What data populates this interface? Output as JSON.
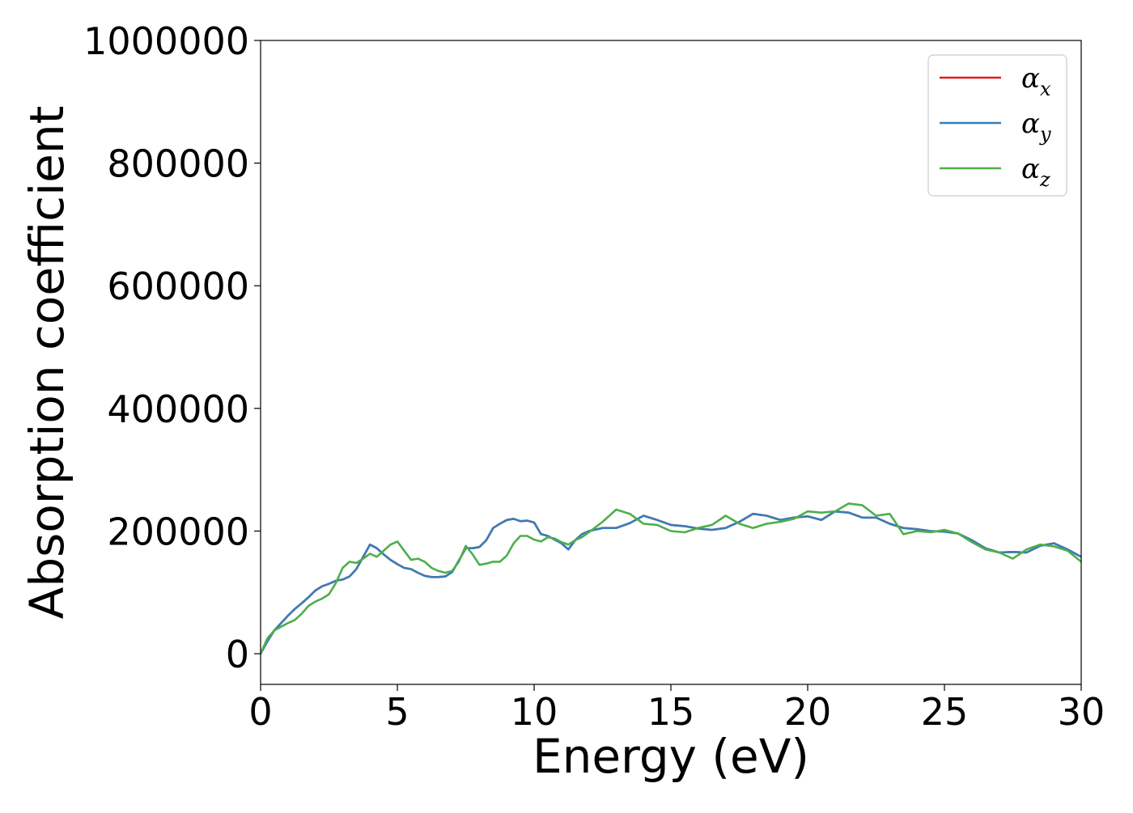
{
  "chart_data": {
    "type": "line",
    "xlabel": "Energy (eV)",
    "ylabel": "Absorption coefficient",
    "xlim": [
      0,
      30
    ],
    "ylim": [
      -50000,
      1000000
    ],
    "xticks": [
      0,
      5,
      10,
      15,
      20,
      25,
      30
    ],
    "yticks": [
      0,
      200000,
      400000,
      600000,
      800000,
      1000000
    ],
    "grid": false,
    "legend_position": "top-right",
    "series": [
      {
        "name": "αx",
        "legend_base": "α",
        "legend_sub": "x",
        "color": "#e41a1c",
        "x": [
          0,
          0.25,
          0.5,
          0.75,
          1,
          1.25,
          1.5,
          1.75,
          2,
          2.25,
          2.5,
          2.75,
          3,
          3.25,
          3.5,
          3.75,
          4,
          4.25,
          4.5,
          4.75,
          5,
          5.25,
          5.5,
          5.75,
          6,
          6.25,
          6.5,
          6.75,
          7,
          7.25,
          7.5,
          7.75,
          8,
          8.25,
          8.5,
          8.75,
          9,
          9.25,
          9.5,
          9.75,
          10,
          10.25,
          10.5,
          10.75,
          11,
          11.25,
          11.5,
          11.75,
          12,
          12.5,
          13,
          13.5,
          14,
          14.5,
          15,
          15.5,
          16,
          16.5,
          17,
          17.5,
          18,
          18.5,
          19,
          19.5,
          20,
          20.5,
          21,
          21.5,
          22,
          22.5,
          23,
          23.5,
          24,
          24.5,
          25,
          25.5,
          26,
          26.5,
          27,
          27.5,
          28,
          28.5,
          29,
          29.5,
          30
        ],
        "y": [
          0,
          20000,
          38000,
          50000,
          62000,
          73000,
          82000,
          92000,
          103000,
          110000,
          114000,
          119000,
          121000,
          126000,
          138000,
          158000,
          178000,
          172000,
          162000,
          153000,
          146000,
          140000,
          138000,
          132000,
          127000,
          125000,
          125000,
          126000,
          133000,
          152000,
          172000,
          172000,
          174000,
          185000,
          205000,
          212000,
          218000,
          220000,
          216000,
          217000,
          214000,
          195000,
          192000,
          186000,
          180000,
          170000,
          185000,
          195000,
          200000,
          205000,
          205000,
          213000,
          225000,
          218000,
          210000,
          208000,
          204000,
          202000,
          205000,
          215000,
          228000,
          225000,
          218000,
          222000,
          224000,
          218000,
          232000,
          230000,
          222000,
          222000,
          212000,
          205000,
          203000,
          200000,
          199000,
          196000,
          185000,
          172000,
          165000,
          166000,
          165000,
          176000,
          180000,
          170000,
          158000
        ]
      },
      {
        "name": "αy",
        "legend_base": "α",
        "legend_sub": "y",
        "color": "#377eb8",
        "x": [
          0,
          0.25,
          0.5,
          0.75,
          1,
          1.25,
          1.5,
          1.75,
          2,
          2.25,
          2.5,
          2.75,
          3,
          3.25,
          3.5,
          3.75,
          4,
          4.25,
          4.5,
          4.75,
          5,
          5.25,
          5.5,
          5.75,
          6,
          6.25,
          6.5,
          6.75,
          7,
          7.25,
          7.5,
          7.75,
          8,
          8.25,
          8.5,
          8.75,
          9,
          9.25,
          9.5,
          9.75,
          10,
          10.25,
          10.5,
          10.75,
          11,
          11.25,
          11.5,
          11.75,
          12,
          12.5,
          13,
          13.5,
          14,
          14.5,
          15,
          15.5,
          16,
          16.5,
          17,
          17.5,
          18,
          18.5,
          19,
          19.5,
          20,
          20.5,
          21,
          21.5,
          22,
          22.5,
          23,
          23.5,
          24,
          24.5,
          25,
          25.5,
          26,
          26.5,
          27,
          27.5,
          28,
          28.5,
          29,
          29.5,
          30
        ],
        "y": [
          0,
          20000,
          38000,
          50000,
          62000,
          73000,
          82000,
          92000,
          103000,
          110000,
          114000,
          119000,
          121000,
          126000,
          138000,
          158000,
          178000,
          172000,
          162000,
          153000,
          146000,
          140000,
          138000,
          132000,
          127000,
          125000,
          125000,
          126000,
          133000,
          152000,
          172000,
          172000,
          174000,
          185000,
          205000,
          212000,
          218000,
          220000,
          216000,
          217000,
          214000,
          195000,
          192000,
          186000,
          180000,
          170000,
          185000,
          195000,
          200000,
          205000,
          205000,
          213000,
          225000,
          218000,
          210000,
          208000,
          204000,
          202000,
          205000,
          215000,
          228000,
          225000,
          218000,
          222000,
          224000,
          218000,
          232000,
          230000,
          222000,
          222000,
          212000,
          205000,
          203000,
          200000,
          199000,
          196000,
          185000,
          172000,
          165000,
          166000,
          165000,
          176000,
          180000,
          170000,
          158000
        ]
      },
      {
        "name": "αz",
        "legend_base": "α",
        "legend_sub": "z",
        "color": "#4daf4a",
        "x": [
          0,
          0.25,
          0.5,
          0.75,
          1,
          1.25,
          1.5,
          1.75,
          2,
          2.25,
          2.5,
          2.75,
          3,
          3.25,
          3.5,
          3.75,
          4,
          4.25,
          4.5,
          4.75,
          5,
          5.25,
          5.5,
          5.75,
          6,
          6.25,
          6.5,
          6.75,
          7,
          7.25,
          7.5,
          7.75,
          8,
          8.25,
          8.5,
          8.75,
          9,
          9.25,
          9.5,
          9.75,
          10,
          10.25,
          10.5,
          10.75,
          11,
          11.25,
          11.5,
          11.75,
          12,
          12.5,
          13,
          13.5,
          14,
          14.5,
          15,
          15.5,
          16,
          16.5,
          17,
          17.5,
          18,
          18.5,
          19,
          19.5,
          20,
          20.5,
          21,
          21.5,
          22,
          22.5,
          23,
          23.5,
          24,
          24.5,
          25,
          25.5,
          26,
          26.5,
          27,
          27.5,
          28,
          28.5,
          29,
          29.5,
          30
        ],
        "y": [
          0,
          25000,
          38000,
          44000,
          50000,
          55000,
          65000,
          78000,
          85000,
          90000,
          97000,
          115000,
          140000,
          150000,
          148000,
          155000,
          163000,
          158000,
          168000,
          178000,
          183000,
          168000,
          153000,
          155000,
          150000,
          140000,
          135000,
          132000,
          135000,
          150000,
          176000,
          162000,
          145000,
          147000,
          150000,
          150000,
          160000,
          180000,
          192000,
          192000,
          186000,
          183000,
          190000,
          188000,
          182000,
          178000,
          185000,
          190000,
          198000,
          215000,
          235000,
          228000,
          212000,
          210000,
          200000,
          198000,
          205000,
          210000,
          225000,
          212000,
          205000,
          212000,
          215000,
          220000,
          232000,
          230000,
          232000,
          245000,
          242000,
          225000,
          228000,
          195000,
          200000,
          198000,
          202000,
          196000,
          182000,
          170000,
          165000,
          155000,
          170000,
          178000,
          175000,
          168000,
          150000
        ]
      }
    ]
  }
}
